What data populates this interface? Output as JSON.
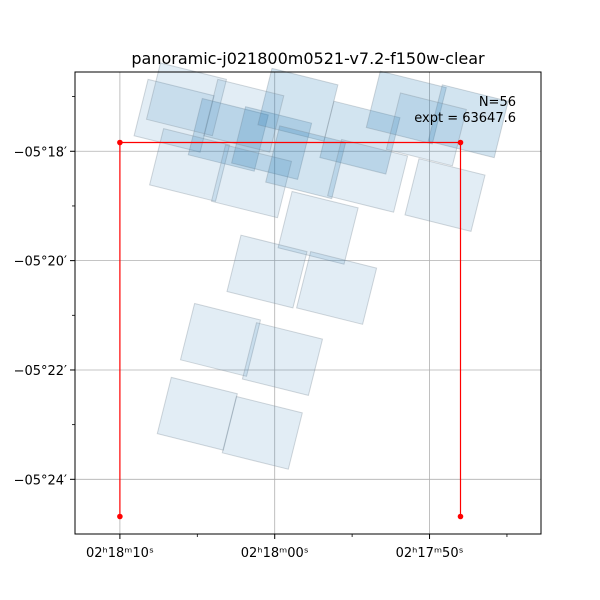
{
  "chart_data": {
    "type": "scatter",
    "title": "panoramic-j021800m0521-v7.2-f150w-clear",
    "annotation": {
      "lines": [
        "N=56",
        "expt = 63647.6"
      ],
      "placement": "top-right"
    },
    "x_axis": {
      "label": "",
      "unit": "RA (s, 02h17m)",
      "range": [
        72.9,
        42.8
      ],
      "ticks": [
        {
          "value": 70,
          "label": "02ʰ18ᵐ10ˢ"
        },
        {
          "value": 60,
          "label": "02ʰ18ᵐ00ˢ"
        },
        {
          "value": 50,
          "label": "02ʰ17ᵐ50ˢ"
        }
      ],
      "minor_ticks": [
        65,
        55,
        45
      ]
    },
    "y_axis": {
      "label": "",
      "unit": "Dec (arcmin south of -05°)",
      "range": [
        16.55,
        25.0
      ],
      "ticks": [
        {
          "value": 18,
          "label": "−05°18′"
        },
        {
          "value": 20,
          "label": "−05°20′"
        },
        {
          "value": 22,
          "label": "−05°22′"
        },
        {
          "value": 24,
          "label": "−05°24′"
        }
      ],
      "minor_ticks": [
        17,
        19,
        21,
        23
      ]
    },
    "grid": true,
    "outline": {
      "name": "",
      "color": "#ff0000",
      "points": [
        {
          "x": 70.0,
          "y": 24.68
        },
        {
          "x": 70.0,
          "y": 17.84
        },
        {
          "x": 48.0,
          "y": 17.84
        },
        {
          "x": 48.0,
          "y": 24.68
        }
      ]
    },
    "footprint_color": "#1f77b4",
    "footprints": [
      {
        "x": 66.5,
        "y": 17.35,
        "dark": false
      },
      {
        "x": 63.0,
        "y": 17.7,
        "dark": true
      },
      {
        "x": 60.2,
        "y": 17.85,
        "dark": true
      },
      {
        "x": 58.5,
        "y": 17.15,
        "dark": true
      },
      {
        "x": 54.5,
        "y": 17.75,
        "dark": true
      },
      {
        "x": 51.5,
        "y": 17.2,
        "dark": true
      },
      {
        "x": 47.5,
        "y": 17.45,
        "dark": true
      },
      {
        "x": 65.5,
        "y": 18.25,
        "dark": false
      },
      {
        "x": 61.5,
        "y": 18.55,
        "dark": false
      },
      {
        "x": 58.0,
        "y": 18.2,
        "dark": true
      },
      {
        "x": 54.0,
        "y": 18.45,
        "dark": false
      },
      {
        "x": 49.0,
        "y": 18.8,
        "dark": false
      },
      {
        "x": 57.2,
        "y": 19.4,
        "dark": false
      },
      {
        "x": 60.5,
        "y": 20.2,
        "dark": false
      },
      {
        "x": 56.0,
        "y": 20.5,
        "dark": false
      },
      {
        "x": 63.5,
        "y": 21.45,
        "dark": false
      },
      {
        "x": 59.5,
        "y": 21.8,
        "dark": false
      },
      {
        "x": 65.0,
        "y": 22.8,
        "dark": false
      },
      {
        "x": 60.8,
        "y": 23.15,
        "dark": false
      },
      {
        "x": 65.7,
        "y": 17.05,
        "dark": false
      },
      {
        "x": 62.0,
        "y": 17.35,
        "dark": false
      },
      {
        "x": 50.2,
        "y": 17.6,
        "dark": false
      }
    ]
  }
}
